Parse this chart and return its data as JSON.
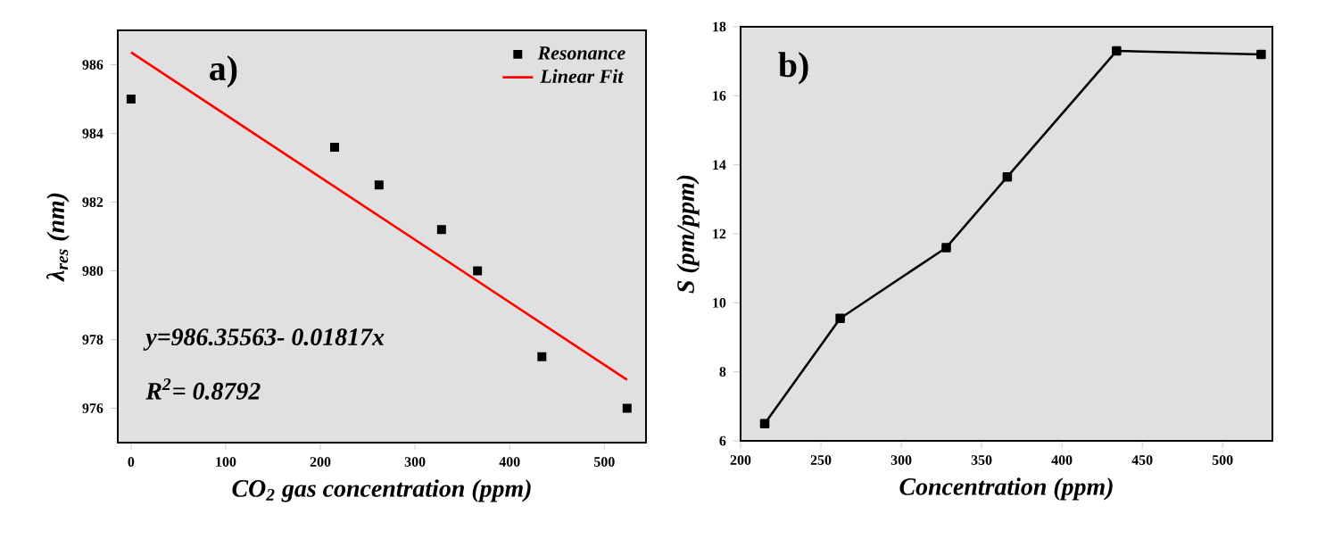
{
  "chart_data": [
    {
      "type": "scatter",
      "xlabel": "CO$_{2}$ gas concentration (ppm)",
      "ylabel": "λ$_{res}$ (nm)",
      "xlim": [
        -14,
        544
      ],
      "ylim": [
        975,
        987
      ],
      "xticks": [
        0,
        100,
        200,
        300,
        400,
        500
      ],
      "yticks": [
        976,
        978,
        980,
        982,
        984,
        986
      ],
      "legend": "top right",
      "marker": "square",
      "annotations": [
        "a)",
        "y=986.35563- 0.01817x",
        "R$^{2}$= 0.8792"
      ],
      "series": [
        {
          "name": "Resonance",
          "type": "scatter",
          "color": "#000000",
          "x": [
            0,
            215,
            262,
            328,
            366,
            434,
            524
          ],
          "values": [
            985,
            983.6,
            982.5,
            981.2,
            980,
            977.5,
            976
          ]
        },
        {
          "name": "Linear Fit",
          "type": "line",
          "marker": "none",
          "color": "#ff0000",
          "x": [
            0,
            524
          ],
          "values": [
            986.36,
            976.83
          ]
        }
      ]
    },
    {
      "type": "line",
      "xlabel": "Concentration (ppm)",
      "ylabel": "S (pm/ppm)",
      "xlim": [
        200,
        531
      ],
      "ylim": [
        6,
        18
      ],
      "xticks": [
        200,
        250,
        300,
        350,
        400,
        450,
        500
      ],
      "yticks": [
        6,
        8,
        10,
        12,
        14,
        16,
        18
      ],
      "marker": "square",
      "line_style": "solid",
      "annotations": [
        "b)"
      ],
      "series": [
        {
          "color": "#000000",
          "x": [
            215,
            262,
            328,
            366,
            434,
            524
          ],
          "values": [
            6.5,
            9.55,
            11.6,
            13.65,
            17.3,
            17.2
          ]
        }
      ]
    }
  ]
}
